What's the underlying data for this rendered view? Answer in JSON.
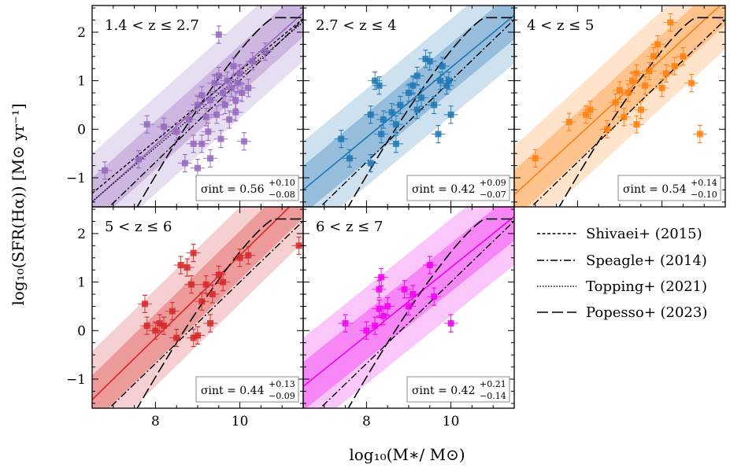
{
  "chart_data": {
    "type": "scatter",
    "xlabel": "log₁₀(M∗/ M⊙)",
    "ylabel": "log₁₀(SFR(Hα)) [M⊙ yr⁻¹]",
    "xlim": [
      6.5,
      11.5
    ],
    "ylim": [
      -1.6,
      2.55
    ],
    "xticks": [
      8,
      10
    ],
    "yticks": [
      -1,
      0,
      1,
      2
    ],
    "legend": [
      {
        "label": "Shivaei+ (2015)",
        "style": "dashed-short"
      },
      {
        "label": "Speagle+ (2014)",
        "style": "dashdot"
      },
      {
        "label": "Topping+ (2021)",
        "style": "dotted"
      },
      {
        "label": "Popesso+ (2023)",
        "style": "dashed-long"
      }
    ],
    "panels": [
      {
        "label": "1.4 < z ≤ 2.7",
        "color": "#9467bd",
        "sigma_text": "σint = 0.56",
        "sigma_sup": "+0.10",
        "sigma_sub": "−0.08",
        "fit": {
          "slope": 0.78,
          "intercept": -0.45
        },
        "points": [
          [
            6.8,
            -0.85
          ],
          [
            7.6,
            -0.62
          ],
          [
            7.8,
            0.1
          ],
          [
            8.2,
            0.05
          ],
          [
            8.5,
            -0.05
          ],
          [
            8.7,
            -0.7
          ],
          [
            8.8,
            0.2
          ],
          [
            8.9,
            -0.3
          ],
          [
            9.0,
            0.5
          ],
          [
            9.0,
            -0.8
          ],
          [
            9.1,
            0.7
          ],
          [
            9.1,
            -0.3
          ],
          [
            9.2,
            0.25
          ],
          [
            9.25,
            -0.05
          ],
          [
            9.3,
            0.6
          ],
          [
            9.4,
            0.95
          ],
          [
            9.45,
            0.3
          ],
          [
            9.5,
            1.1
          ],
          [
            9.55,
            -0.2
          ],
          [
            9.6,
            0.75
          ],
          [
            9.65,
            0.5
          ],
          [
            9.7,
            1.0
          ],
          [
            9.75,
            0.2
          ],
          [
            9.8,
            0.85
          ],
          [
            9.85,
            1.3
          ],
          [
            9.9,
            0.6
          ],
          [
            9.95,
            0.95
          ],
          [
            10.0,
            1.15
          ],
          [
            10.05,
            0.75
          ],
          [
            10.1,
            -0.25
          ],
          [
            10.2,
            0.85
          ],
          [
            10.3,
            1.4
          ],
          [
            10.6,
            1.6
          ],
          [
            9.5,
            1.95
          ],
          [
            9.9,
            0.35
          ],
          [
            9.3,
            -0.6
          ]
        ]
      },
      {
        "label": "2.7 < z ≤ 4",
        "color": "#1f77b4",
        "sigma_text": "σint = 0.42",
        "sigma_sup": "+0.09",
        "sigma_sub": "−0.07",
        "fit": {
          "slope": 0.72,
          "intercept": -0.35
        },
        "points": [
          [
            7.4,
            -0.2
          ],
          [
            7.6,
            -0.6
          ],
          [
            8.1,
            -0.7
          ],
          [
            8.1,
            0.3
          ],
          [
            8.2,
            1.0
          ],
          [
            8.3,
            0.9
          ],
          [
            8.35,
            -0.1
          ],
          [
            8.4,
            0.2
          ],
          [
            8.6,
            0.35
          ],
          [
            8.7,
            -0.3
          ],
          [
            8.8,
            0.5
          ],
          [
            9.0,
            0.75
          ],
          [
            9.1,
            0.9
          ],
          [
            9.2,
            1.1
          ],
          [
            9.3,
            0.65
          ],
          [
            9.4,
            1.45
          ],
          [
            9.5,
            1.4
          ],
          [
            9.6,
            0.5
          ],
          [
            9.7,
            -0.1
          ],
          [
            9.75,
            1.0
          ],
          [
            9.8,
            1.3
          ],
          [
            9.9,
            0.9
          ],
          [
            9.95,
            1.0
          ],
          [
            10.0,
            0.3
          ],
          [
            8.7,
            0.1
          ],
          [
            9.2,
            0.4
          ]
        ]
      },
      {
        "label": "4 < z ≤ 5",
        "color": "#ff7f0e",
        "sigma_text": "σint = 0.54",
        "sigma_sup": "+0.14",
        "sigma_sub": "−0.10",
        "fit": {
          "slope": 0.8,
          "intercept": -0.25
        },
        "points": [
          [
            7.0,
            -0.6
          ],
          [
            7.8,
            0.15
          ],
          [
            8.2,
            0.3
          ],
          [
            8.3,
            0.4
          ],
          [
            8.7,
            0.0
          ],
          [
            8.9,
            0.55
          ],
          [
            9.0,
            0.8
          ],
          [
            9.1,
            0.25
          ],
          [
            9.2,
            0.75
          ],
          [
            9.3,
            1.0
          ],
          [
            9.4,
            1.15
          ],
          [
            9.5,
            0.4
          ],
          [
            9.6,
            0.9
          ],
          [
            9.7,
            1.2
          ],
          [
            9.8,
            1.5
          ],
          [
            9.9,
            1.75
          ],
          [
            10.0,
            0.85
          ],
          [
            10.1,
            1.15
          ],
          [
            10.3,
            1.3
          ],
          [
            10.5,
            1.5
          ],
          [
            10.7,
            0.95
          ],
          [
            10.9,
            -0.1
          ],
          [
            10.2,
            2.2
          ],
          [
            9.4,
            0.1
          ]
        ]
      },
      {
        "label": "5 < z ≤ 6",
        "color": "#d62728",
        "sigma_text": "σint = 0.44",
        "sigma_sup": "+0.13",
        "sigma_sub": "−0.09",
        "fit": {
          "slope": 0.85,
          "intercept": -0.2
        },
        "points": [
          [
            7.75,
            0.55
          ],
          [
            7.8,
            0.1
          ],
          [
            8.0,
            0.0
          ],
          [
            8.1,
            0.15
          ],
          [
            8.2,
            0.1
          ],
          [
            8.4,
            0.4
          ],
          [
            8.5,
            -0.15
          ],
          [
            8.6,
            1.35
          ],
          [
            8.75,
            1.3
          ],
          [
            8.85,
            0.95
          ],
          [
            8.9,
            -0.15
          ],
          [
            9.0,
            -0.1
          ],
          [
            9.1,
            0.6
          ],
          [
            9.2,
            0.95
          ],
          [
            9.35,
            0.75
          ],
          [
            9.5,
            1.15
          ],
          [
            9.6,
            1.0
          ],
          [
            10.0,
            1.5
          ],
          [
            10.2,
            1.55
          ],
          [
            11.4,
            1.75
          ],
          [
            8.9,
            1.6
          ],
          [
            9.3,
            0.15
          ]
        ]
      },
      {
        "label": "6 < z ≤ 7",
        "color": "#ee00ee",
        "sigma_text": "σint = 0.42",
        "sigma_sup": "+0.21",
        "sigma_sub": "−0.14",
        "fit": {
          "slope": 0.7,
          "intercept": -0.3
        },
        "points": [
          [
            7.5,
            0.15
          ],
          [
            8.0,
            0.0
          ],
          [
            8.2,
            0.1
          ],
          [
            8.3,
            0.45
          ],
          [
            8.3,
            0.85
          ],
          [
            8.35,
            1.1
          ],
          [
            8.4,
            0.3
          ],
          [
            8.5,
            0.5
          ],
          [
            8.9,
            0.85
          ],
          [
            9.0,
            0.5
          ],
          [
            9.1,
            0.75
          ],
          [
            9.5,
            1.35
          ],
          [
            9.6,
            0.7
          ],
          [
            10.0,
            0.15
          ]
        ]
      }
    ]
  }
}
